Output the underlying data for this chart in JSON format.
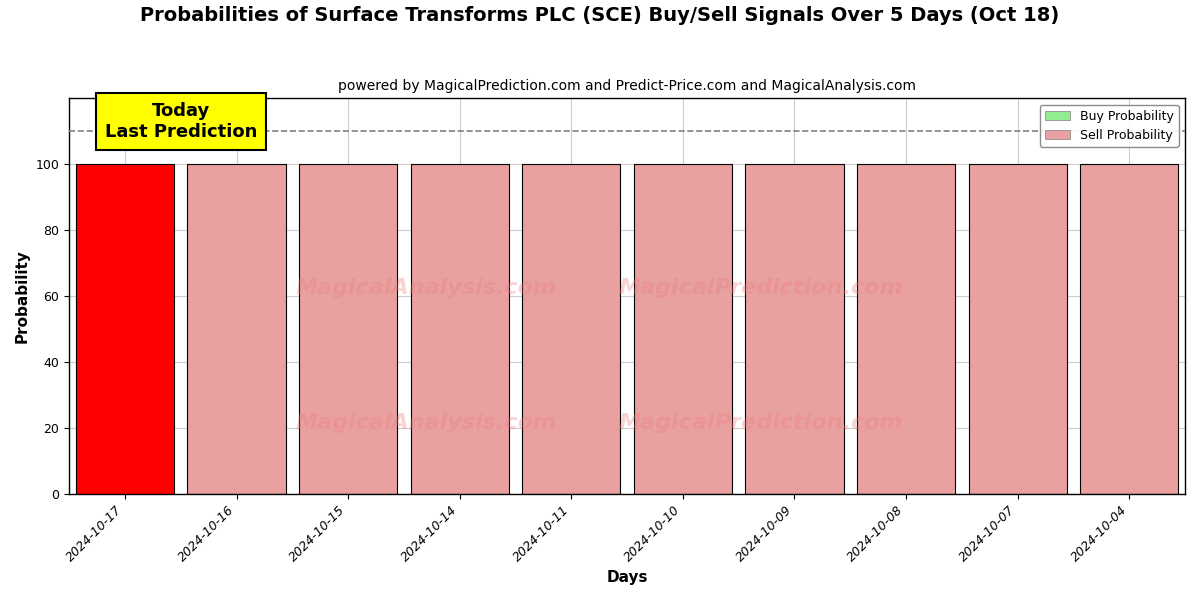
{
  "title": "Probabilities of Surface Transforms PLC (SCE) Buy/Sell Signals Over 5 Days (Oct 18)",
  "subtitle": "powered by MagicalPrediction.com and Predict-Price.com and MagicalAnalysis.com",
  "xlabel": "Days",
  "ylabel": "Probability",
  "dates": [
    "2024-10-17",
    "2024-10-16",
    "2024-10-15",
    "2024-10-14",
    "2024-10-11",
    "2024-10-10",
    "2024-10-09",
    "2024-10-08",
    "2024-10-07",
    "2024-10-04"
  ],
  "sell_probs": [
    100,
    100,
    100,
    100,
    100,
    100,
    100,
    100,
    100,
    100
  ],
  "buy_probs": [
    0,
    0,
    0,
    0,
    0,
    0,
    0,
    0,
    0,
    0
  ],
  "today_color": "#FF0000",
  "other_sell_color": "#E8A0A0",
  "buy_color": "#90EE90",
  "sell_legend_color": "#E8A0A0",
  "dashed_line_y": 110,
  "ylim": [
    0,
    120
  ],
  "yticks": [
    0,
    20,
    40,
    60,
    80,
    100
  ],
  "annotation_text": "Today\nLast Prediction",
  "annotation_bg_color": "#FFFF00",
  "watermark1_text": "MagicalAnalysis.com",
  "watermark2_text": "MagicalPrediction.com",
  "background_color": "#FFFFFF",
  "grid_color": "#CCCCCC",
  "title_fontsize": 14,
  "subtitle_fontsize": 10,
  "label_fontsize": 11,
  "bar_width": 0.88
}
